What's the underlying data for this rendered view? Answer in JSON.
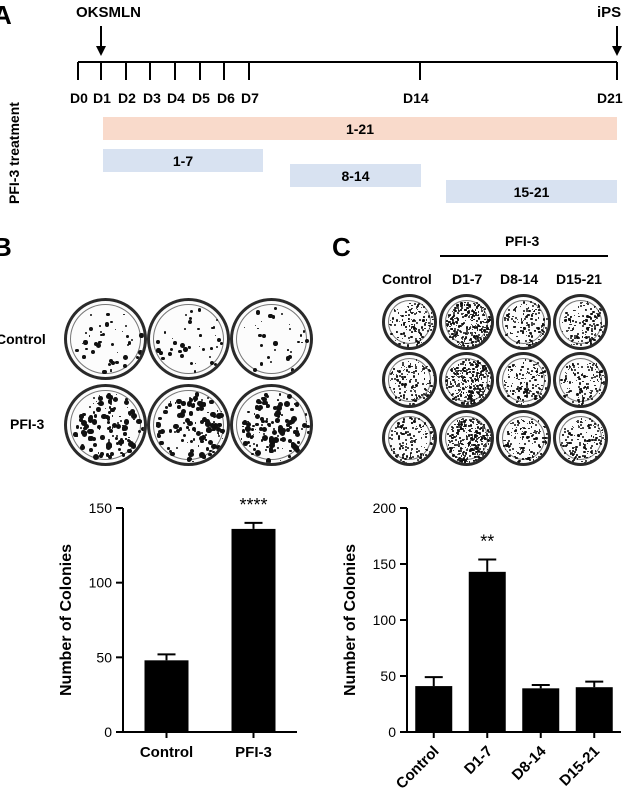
{
  "panel_labels": {
    "a": "A",
    "b": "B",
    "c": "C"
  },
  "timeline": {
    "start_label": "OKSMLN",
    "end_label": "iPS",
    "side_label": "PFI-3 treatment",
    "ticks": [
      "D0",
      "D1",
      "D2",
      "D3",
      "D4",
      "D5",
      "D6",
      "D7",
      "D14",
      "D21"
    ],
    "bars": [
      {
        "label": "1-21",
        "color": "#f9dacb"
      },
      {
        "label": "1-7",
        "color": "#d8e2f1"
      },
      {
        "label": "8-14",
        "color": "#d8e2f1"
      },
      {
        "label": "15-21",
        "color": "#d8e2f1"
      }
    ]
  },
  "panel_b": {
    "row_labels": [
      "Control",
      "PFI-3"
    ]
  },
  "panel_c": {
    "group_label": "PFI-3",
    "col_labels": [
      "Control",
      "D1-7",
      "D8-14",
      "D15-21"
    ]
  },
  "chart_data": [
    {
      "type": "bar",
      "panel": "B",
      "categories": [
        "Control",
        "PFI-3"
      ],
      "values": [
        48,
        136
      ],
      "errors": [
        4,
        4
      ],
      "significance": [
        "",
        "****"
      ],
      "title": "",
      "xlabel": "",
      "ylabel": "Number of Colonies",
      "ylim": [
        0,
        150
      ],
      "yticks": [
        0,
        50,
        100,
        150
      ],
      "bar_color": "#000000"
    },
    {
      "type": "bar",
      "panel": "C",
      "categories": [
        "Control",
        "D1-7",
        "D8-14",
        "D15-21"
      ],
      "values": [
        41,
        143,
        39,
        40
      ],
      "errors": [
        8,
        11,
        3,
        5
      ],
      "significance": [
        "",
        "**",
        "",
        ""
      ],
      "title": "",
      "xlabel": "",
      "ylabel": "Number of Colonies",
      "ylim": [
        0,
        200
      ],
      "yticks": [
        0,
        50,
        100,
        150,
        200
      ],
      "bar_color": "#000000"
    }
  ]
}
